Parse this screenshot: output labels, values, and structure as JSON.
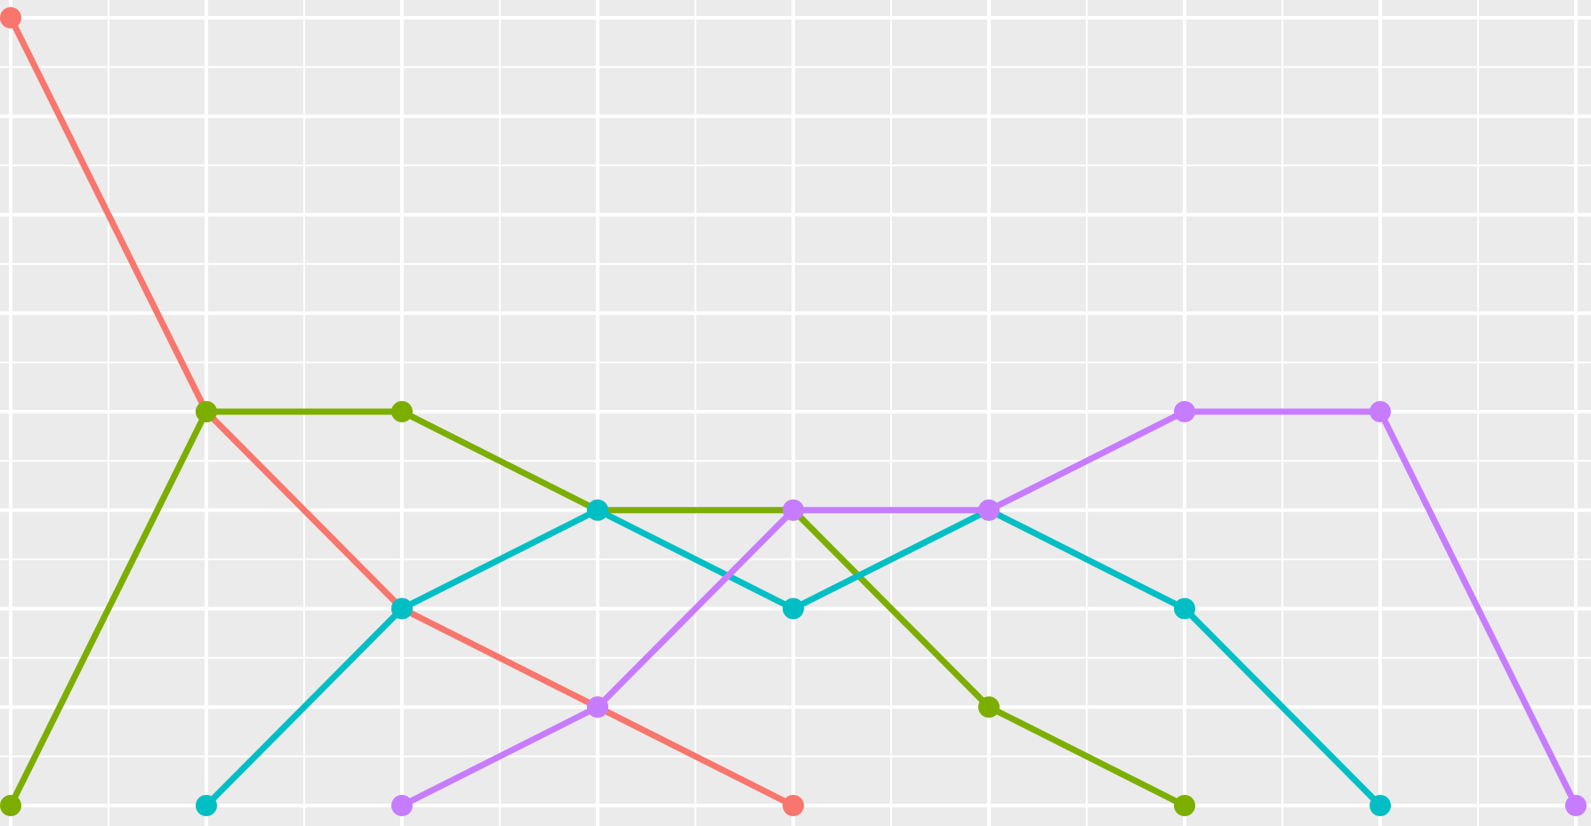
{
  "chart_data": {
    "type": "line",
    "title": "",
    "xlabel": "",
    "ylabel": "",
    "xlim": [
      0,
      8
    ],
    "ylim": [
      0,
      4
    ],
    "grid": true,
    "legend": "none",
    "colors": {
      "panel_background": "#EBEBEB",
      "grid_line": "#FFFFFF"
    },
    "series": [
      {
        "color": "#F8766D",
        "points": [
          [
            0,
            4
          ],
          [
            1,
            2
          ],
          [
            2,
            1
          ],
          [
            3,
            0.5
          ],
          [
            4,
            0
          ]
        ]
      },
      {
        "color": "#7CAE00",
        "points": [
          [
            0,
            0
          ],
          [
            1,
            2
          ],
          [
            2,
            2
          ],
          [
            3,
            1.5
          ],
          [
            4,
            1.5
          ],
          [
            5,
            0.5
          ],
          [
            6,
            0
          ]
        ]
      },
      {
        "color": "#00BFC4",
        "points": [
          [
            1,
            0
          ],
          [
            2,
            1
          ],
          [
            3,
            1.5
          ],
          [
            4,
            1
          ],
          [
            5,
            1.5
          ],
          [
            6,
            1
          ],
          [
            7,
            0
          ]
        ]
      },
      {
        "color": "#C77CFF",
        "points": [
          [
            2,
            0
          ],
          [
            3,
            0.5
          ],
          [
            4,
            1.5
          ],
          [
            5,
            1.5
          ],
          [
            6,
            2
          ],
          [
            7,
            2
          ],
          [
            8,
            0
          ]
        ]
      }
    ]
  }
}
